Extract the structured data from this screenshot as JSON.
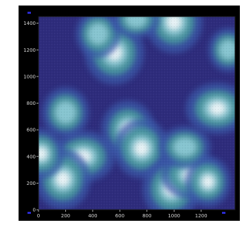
{
  "chart_data": {
    "type": "heatmap",
    "title": "",
    "xlabel": "",
    "ylabel": "",
    "xlim": [
      0,
      1450
    ],
    "ylim": [
      0,
      1450
    ],
    "x_ticks": [
      0,
      200,
      400,
      600,
      800,
      1000,
      1200
    ],
    "y_ticks": [
      0,
      200,
      400,
      600,
      800,
      1000,
      1200,
      1400
    ],
    "x_tick_labels": [
      "0",
      "200",
      "400",
      "600",
      "800",
      "1000",
      "1200"
    ],
    "y_tick_labels": [
      "0",
      "200",
      "400",
      "600",
      "800",
      "1000",
      "1200",
      "1400"
    ],
    "grid": false,
    "legend": "none",
    "colors": {
      "background": "#000000",
      "low": "#2e2c7c",
      "mid_low": "#3a5aa8",
      "mid": "#4a9a9e",
      "mid_high": "#8ecbd6",
      "high": "#f2f6f8"
    },
    "hotspots": [
      {
        "x": 1000,
        "y": 1410,
        "intensity": 1.0
      },
      {
        "x": 560,
        "y": 1180,
        "intensity": 0.9
      },
      {
        "x": 1320,
        "y": 760,
        "intensity": 0.85
      },
      {
        "x": 660,
        "y": 600,
        "intensity": 0.9
      },
      {
        "x": 760,
        "y": 460,
        "intensity": 0.8
      },
      {
        "x": 330,
        "y": 400,
        "intensity": 0.85
      },
      {
        "x": 180,
        "y": 230,
        "intensity": 0.95
      },
      {
        "x": 980,
        "y": 160,
        "intensity": 0.85
      },
      {
        "x": 1120,
        "y": 260,
        "intensity": 0.75
      },
      {
        "x": 1250,
        "y": 210,
        "intensity": 0.7
      },
      {
        "x": 200,
        "y": 730,
        "intensity": 0.6
      },
      {
        "x": 1080,
        "y": 470,
        "intensity": 0.6
      },
      {
        "x": 20,
        "y": 420,
        "intensity": 0.7
      },
      {
        "x": 440,
        "y": 1320,
        "intensity": 0.55
      },
      {
        "x": 720,
        "y": 1430,
        "intensity": 0.5
      },
      {
        "x": 1400,
        "y": 1200,
        "intensity": 0.55
      }
    ]
  }
}
